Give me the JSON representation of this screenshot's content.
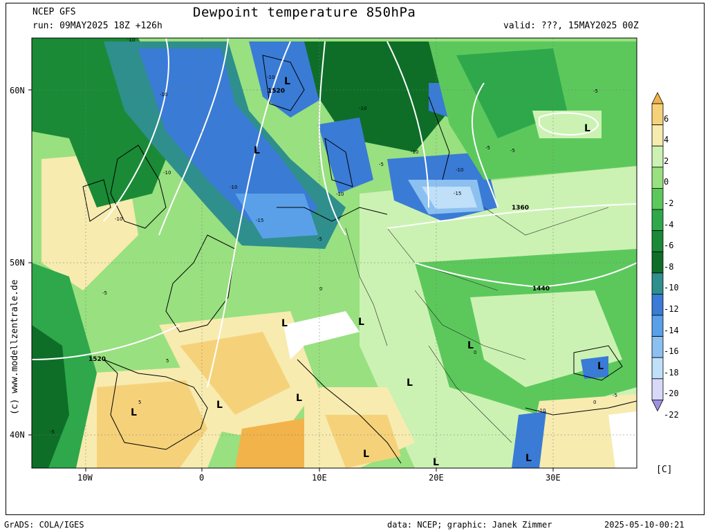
{
  "header": {
    "model": "NCEP GFS",
    "run": "run: 09MAY2025 18Z +126h",
    "title": "Dewpoint temperature 850hPa",
    "valid": "valid: ???, 15MAY2025 00Z"
  },
  "side_credit": "(c) www.modellzentrale.de",
  "footer": {
    "left": "GrADS: COLA/IGES",
    "center": "data: NCEP; graphic: Janek Zimmer",
    "right": "2025-05-10-00:21"
  },
  "axes": {
    "lat_labels": [
      "60N",
      "50N",
      "40N"
    ],
    "lon_labels": [
      "10W",
      "0",
      "10E",
      "20E",
      "30E"
    ]
  },
  "colorbar": {
    "unit": "[C]",
    "labels": [
      "6",
      "4",
      "2",
      "0",
      "-2",
      "-4",
      "-6",
      "-8",
      "-10",
      "-12",
      "-14",
      "-16",
      "-18",
      "-20",
      "-22"
    ],
    "colors": [
      "#f2b34a",
      "#f5d27a",
      "#f7ebb0",
      "#ccf2b3",
      "#99e080",
      "#5cc85c",
      "#2ea84a",
      "#1a8a36",
      "#0e6e28",
      "#2e8f8c",
      "#3a7bd5",
      "#5aa0e8",
      "#8cc0f0",
      "#bfe0f8",
      "#d8d8f8",
      "#a090e0"
    ]
  },
  "map_labels": {
    "lows": [
      "L",
      "L",
      "L",
      "L",
      "L",
      "L",
      "L",
      "L",
      "L",
      "L",
      "L",
      "L",
      "L",
      "L"
    ],
    "isobars": [
      "1520",
      "1360",
      "1440",
      "1520"
    ],
    "contours": [
      "-10",
      "-10",
      "-10",
      "-10",
      "-10",
      "-10",
      "-10",
      "-10",
      "-10",
      "-15",
      "-15",
      "-10",
      "-5",
      "-5",
      "-5",
      "-5",
      "-5",
      "-5",
      "0",
      "0",
      "5",
      "5",
      "-5",
      "-10",
      "-5",
      "0"
    ]
  }
}
